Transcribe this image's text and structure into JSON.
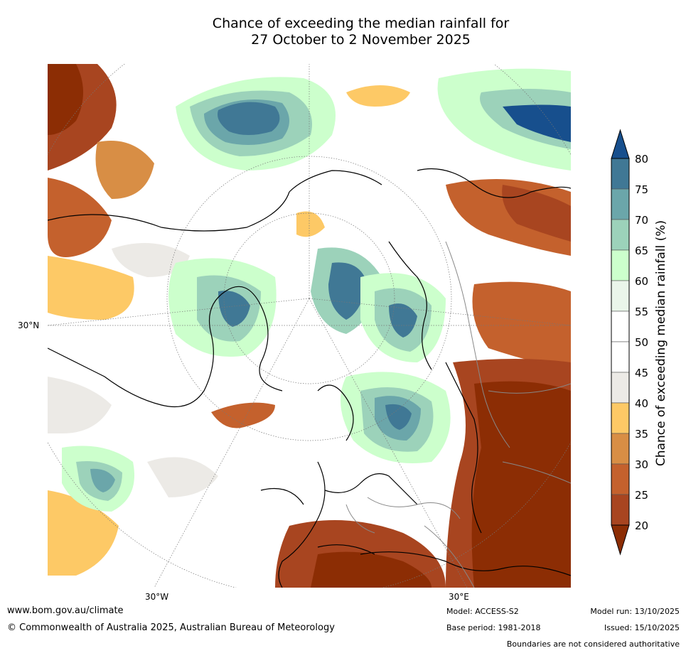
{
  "title": {
    "line1": "Chance of exceeding the median rainfall for",
    "line2": "27 October to 2 November 2025"
  },
  "map": {
    "projection": "north-polar stereographic",
    "lat_labels": [
      "30°N"
    ],
    "lon_labels": [
      "30°W",
      "30°E"
    ]
  },
  "colorbar": {
    "label": "Chance of exceeding median rainfall (%)",
    "ticks": [
      "20",
      "25",
      "30",
      "35",
      "40",
      "45",
      "50",
      "55",
      "60",
      "65",
      "70",
      "75",
      "80"
    ],
    "colors": {
      "lt20": "#8c2d04",
      "20-25": "#a84520",
      "25-30": "#c4612d",
      "30-35": "#d88e45",
      "35-40": "#fdc966",
      "40-45": "#eceae6",
      "45-50": "#ffffff",
      "50-55": "#ffffff",
      "55-60": "#eaf5ea",
      "60-65": "#ccffcc",
      "65-70": "#9cd2ba",
      "70-75": "#6ba6aa",
      "75-80": "#407895",
      "gt80": "#174f8d"
    }
  },
  "footer": {
    "website": "www.bom.gov.au/climate",
    "copyright": "© Commonwealth of Australia 2025, Australian Bureau of Meteorology",
    "model": "Model: ACCESS-S2",
    "base_period": "Base period: 1981-2018",
    "model_run": "Model run: 13/10/2025",
    "issued": "Issued: 15/10/2025",
    "disclaimer": "Boundaries are not considered authoritative"
  }
}
